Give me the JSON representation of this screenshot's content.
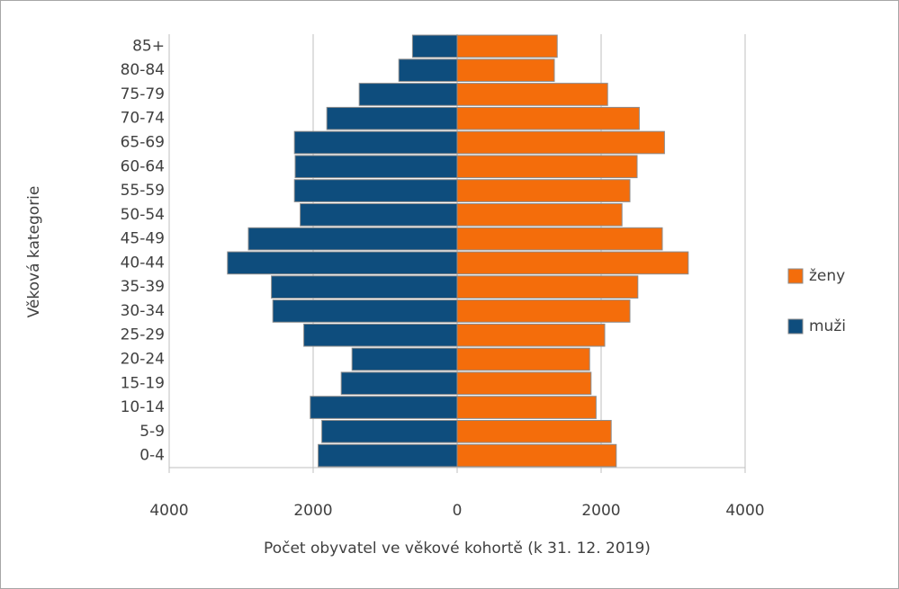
{
  "chart_data": {
    "type": "pyramid",
    "x_label": "Počet obyvatel ve věkové kohortě (k 31. 12. 2019)",
    "y_label": "Věková kategorie",
    "categories": [
      "0-4",
      "5-9",
      "10-14",
      "15-19",
      "20-24",
      "25-29",
      "30-34",
      "35-39",
      "40-44",
      "45-49",
      "50-54",
      "55-59",
      "60-64",
      "65-69",
      "70-74",
      "75-79",
      "80-84",
      "85+"
    ],
    "series": [
      {
        "name": "ženy",
        "color": "#f46d0b",
        "values": [
          2210,
          2140,
          1930,
          1860,
          1840,
          2050,
          2400,
          2510,
          3210,
          2850,
          2290,
          2400,
          2500,
          2880,
          2530,
          2090,
          1350,
          1390
        ]
      },
      {
        "name": "muži",
        "color": "#0e4d7d",
        "values": [
          -1930,
          -1880,
          -2040,
          -1610,
          -1460,
          -2130,
          -2560,
          -2580,
          -3190,
          -2900,
          -2180,
          -2260,
          -2250,
          -2260,
          -1810,
          -1360,
          -810,
          -620
        ]
      }
    ],
    "xlim": [
      -4000,
      4000
    ],
    "xticks": [
      {
        "value": -4000,
        "label": "4000"
      },
      {
        "value": -2000,
        "label": "2000"
      },
      0,
      2000,
      4000
    ],
    "grid": true,
    "legend": "right"
  }
}
